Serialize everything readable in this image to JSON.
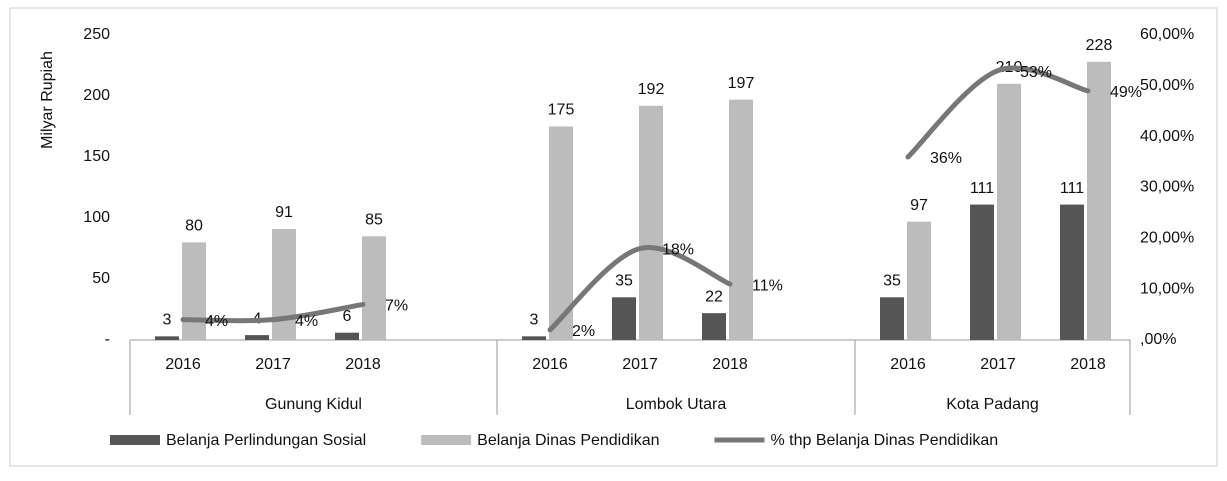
{
  "chart_data": {
    "type": "bar",
    "y_label": "Milyar Rupiah",
    "groups": [
      "Gunung Kidul",
      "Lombok Utara",
      "Kota Padang"
    ],
    "categories": [
      "2016",
      "2017",
      "2018",
      "2016",
      "2017",
      "2018",
      "2016",
      "2017",
      "2018"
    ],
    "ylim": [
      0,
      250
    ],
    "yticks": [
      {
        "value": 0,
        "label": "-"
      },
      50,
      100,
      150,
      200,
      250
    ],
    "y2lim": [
      0,
      60
    ],
    "y2ticks": [
      {
        "value": 0,
        "label": ",00%"
      },
      {
        "value": 10,
        "label": "10,00%"
      },
      {
        "value": 20,
        "label": "20,00%"
      },
      {
        "value": 30,
        "label": "30,00%"
      },
      {
        "value": 40,
        "label": "40,00%"
      },
      {
        "value": 50,
        "label": "50,00%"
      },
      {
        "value": 60,
        "label": "60,00%"
      }
    ],
    "legend": "bottom",
    "series": [
      {
        "name": "Belanja Perlindungan Sosial",
        "color": "#555555",
        "values": [
          3,
          4,
          6,
          3,
          35,
          22,
          35,
          111,
          111
        ]
      },
      {
        "name": "Belanja Dinas Pendidikan",
        "color": "#bcbcbc",
        "values": [
          80,
          91,
          85,
          175,
          192,
          197,
          97,
          210,
          228
        ]
      },
      {
        "name": "% thp Belanja Dinas Pendidikan",
        "color": "#777777",
        "axis": "y2",
        "type": "line",
        "values": [
          4,
          4,
          7,
          2,
          18,
          11,
          36,
          53,
          49
        ],
        "value_labels": [
          "4%",
          "4%",
          "7%",
          "2%",
          "18%",
          "11%",
          "36%",
          "53%",
          "49%"
        ]
      }
    ]
  }
}
